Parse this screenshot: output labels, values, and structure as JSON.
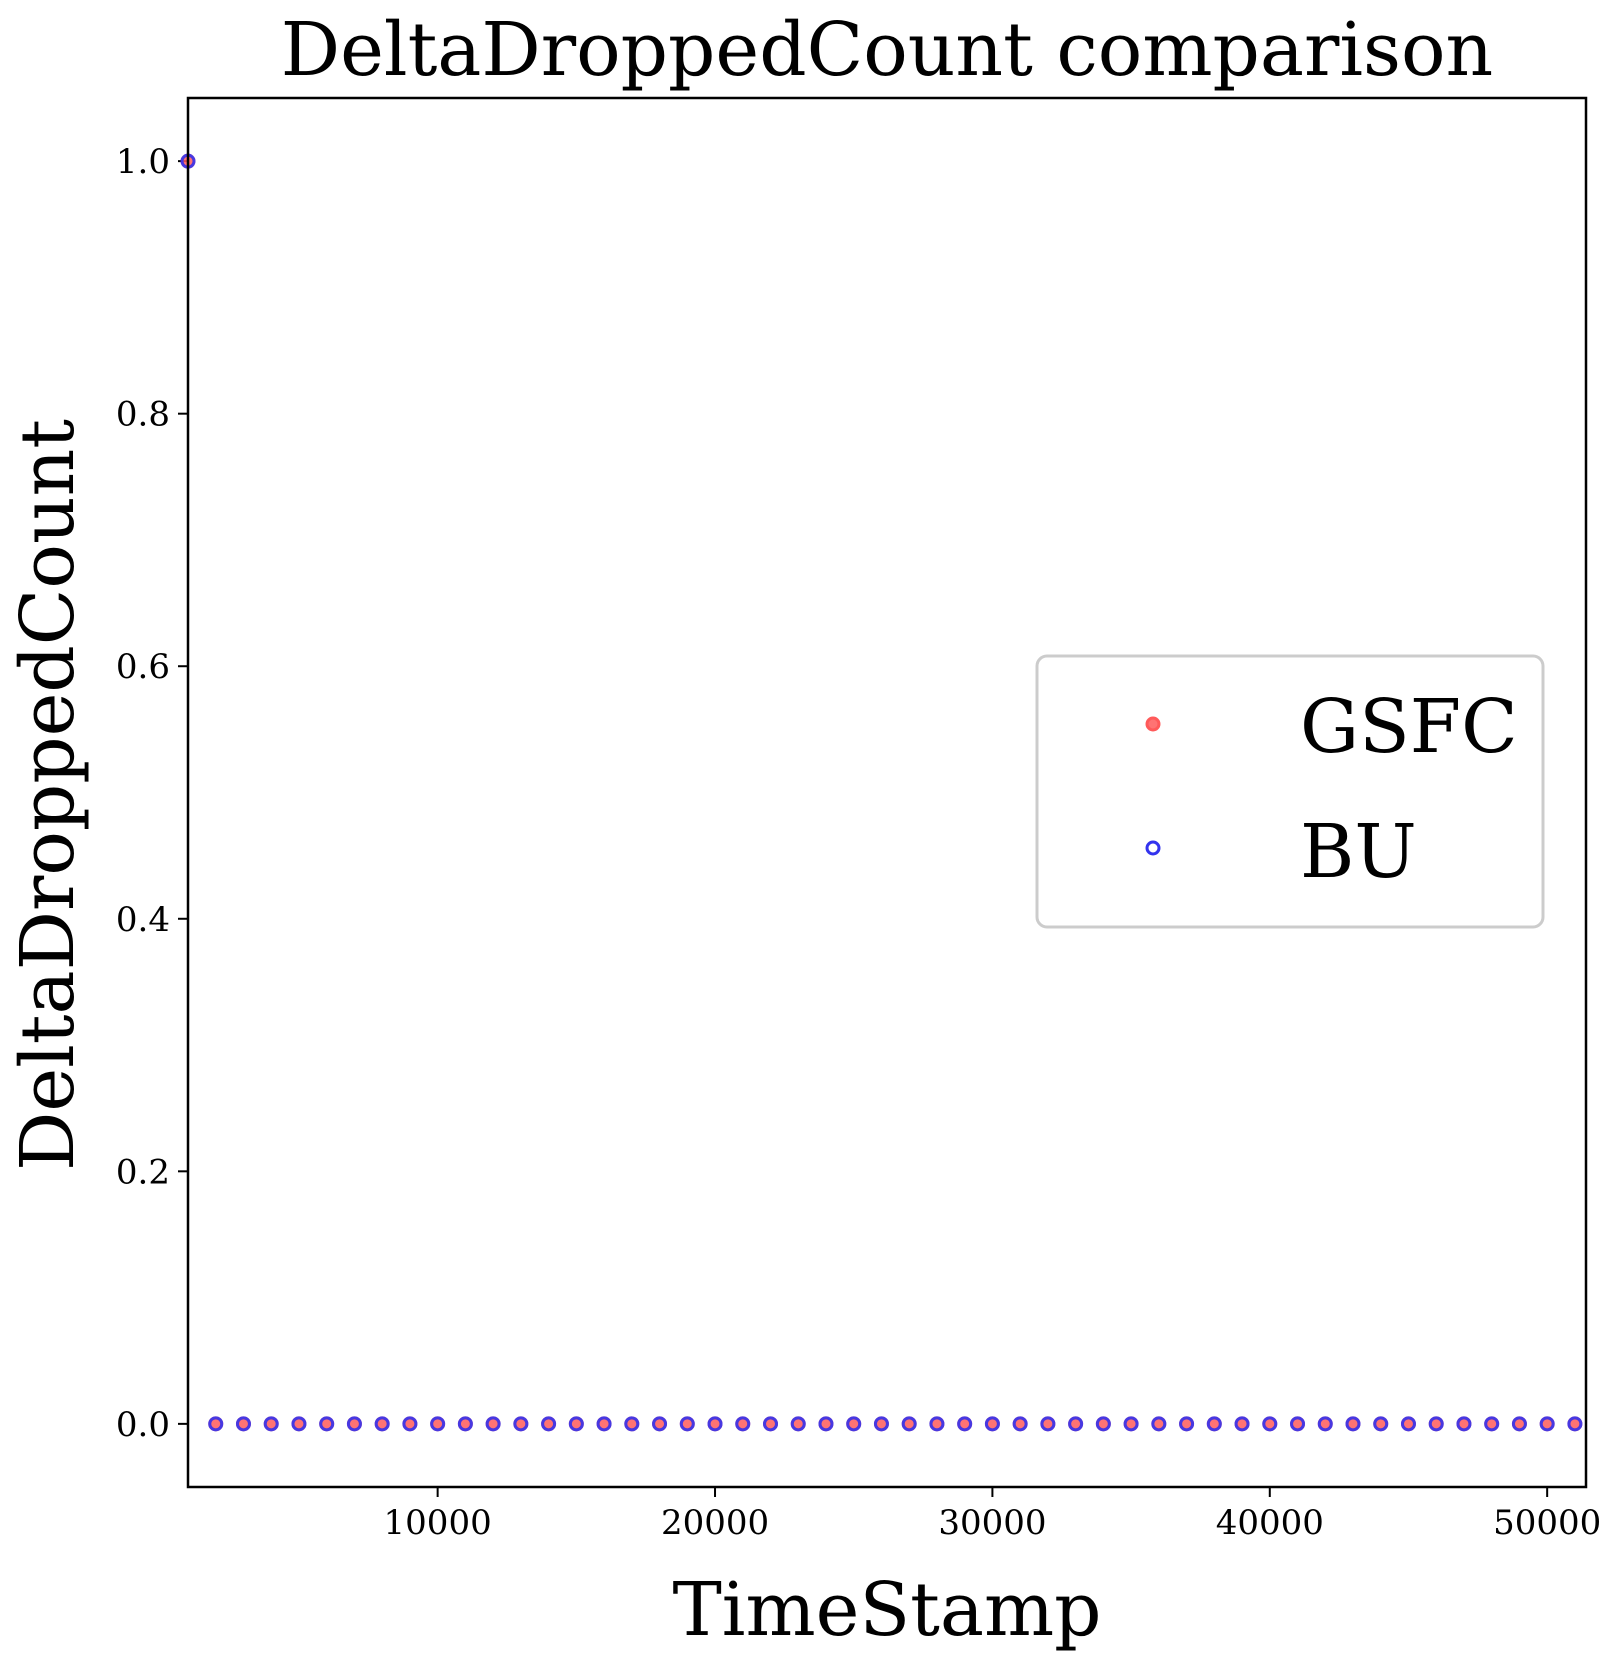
{
  "chart_data": {
    "type": "scatter",
    "title": "DeltaDroppedCount comparison",
    "xlabel": "TimeStamp",
    "ylabel": "DeltaDroppedCount",
    "xlim": [
      1000,
      51400
    ],
    "ylim": [
      -0.05,
      1.05
    ],
    "xticks": [
      10000,
      20000,
      30000,
      40000,
      50000
    ],
    "xtick_labels": [
      "10000",
      "20000",
      "30000",
      "40000",
      "50000"
    ],
    "yticks": [
      0.0,
      0.2,
      0.4,
      0.6,
      0.8,
      1.0
    ],
    "ytick_labels": [
      "0.0",
      "0.2",
      "0.4",
      "0.6",
      "0.8",
      "1.0"
    ],
    "grid": false,
    "legend_position": "center-right",
    "x": [
      1000,
      2000,
      3000,
      4000,
      5000,
      6000,
      7000,
      8000,
      9000,
      10000,
      11000,
      12000,
      13000,
      14000,
      15000,
      16000,
      17000,
      18000,
      19000,
      20000,
      21000,
      22000,
      23000,
      24000,
      25000,
      26000,
      27000,
      28000,
      29000,
      30000,
      31000,
      32000,
      33000,
      34000,
      35000,
      36000,
      37000,
      38000,
      39000,
      40000,
      41000,
      42000,
      43000,
      44000,
      45000,
      46000,
      47000,
      48000,
      49000,
      50000,
      51000
    ],
    "series": [
      {
        "name": "GSFC",
        "color": "#ff5a5a",
        "marker": "filled-circle",
        "values": [
          1,
          0,
          0,
          0,
          0,
          0,
          0,
          0,
          0,
          0,
          0,
          0,
          0,
          0,
          0,
          0,
          0,
          0,
          0,
          0,
          0,
          0,
          0,
          0,
          0,
          0,
          0,
          0,
          0,
          0,
          0,
          0,
          0,
          0,
          0,
          0,
          0,
          0,
          0,
          0,
          0,
          0,
          0,
          0,
          0,
          0,
          0,
          0,
          0,
          0,
          0
        ]
      },
      {
        "name": "BU",
        "color": "#3333ee",
        "marker": "hollow-circle",
        "values": [
          1,
          0,
          0,
          0,
          0,
          0,
          0,
          0,
          0,
          0,
          0,
          0,
          0,
          0,
          0,
          0,
          0,
          0,
          0,
          0,
          0,
          0,
          0,
          0,
          0,
          0,
          0,
          0,
          0,
          0,
          0,
          0,
          0,
          0,
          0,
          0,
          0,
          0,
          0,
          0,
          0,
          0,
          0,
          0,
          0,
          0,
          0,
          0,
          0,
          0,
          0
        ]
      }
    ]
  }
}
